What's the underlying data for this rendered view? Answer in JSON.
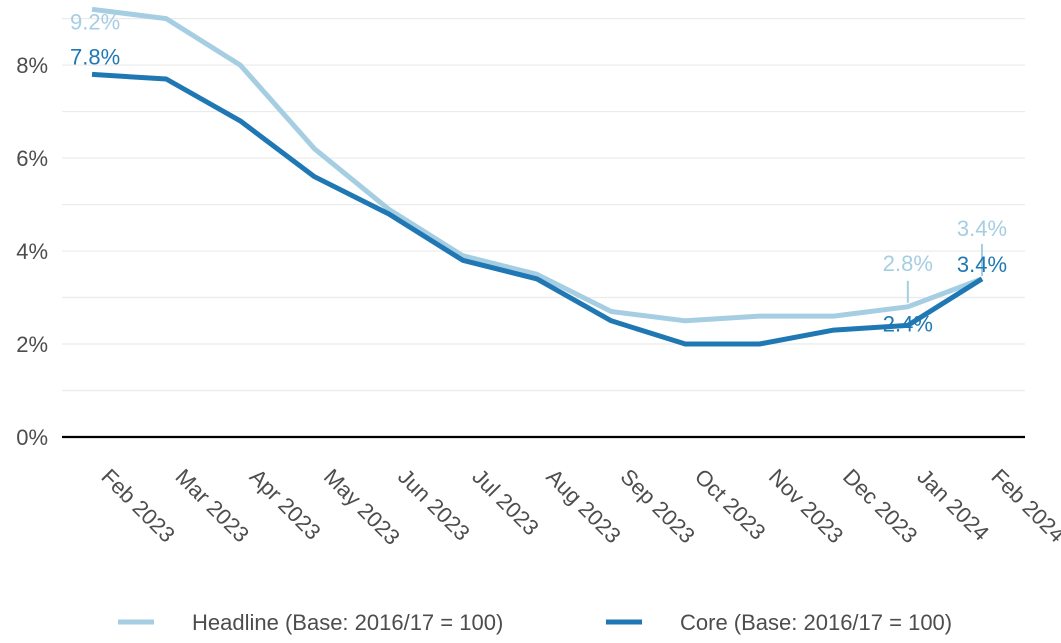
{
  "chart_data": {
    "type": "line",
    "title": "",
    "xlabel": "",
    "ylabel": "",
    "categories": [
      "Feb 2023",
      "Mar 2023",
      "Apr 2023",
      "May 2023",
      "Jun 2023",
      "Jul 2023",
      "Aug 2023",
      "Sep 2023",
      "Oct 2023",
      "Nov 2023",
      "Dec 2023",
      "Jan 2024",
      "Feb 2024"
    ],
    "ylim": [
      0,
      9.4
    ],
    "yticks": [
      0,
      2,
      4,
      6,
      8
    ],
    "ytick_labels": [
      "0%",
      "2%",
      "4%",
      "6%",
      "8%"
    ],
    "grid": true,
    "legend_position": "bottom",
    "series": [
      {
        "name": "Headline (Base: 2016/17 = 100)",
        "color": "#a6cee3",
        "values": [
          9.2,
          9.0,
          8.0,
          6.2,
          4.9,
          3.9,
          3.5,
          2.7,
          2.5,
          2.6,
          2.6,
          2.8,
          3.4
        ]
      },
      {
        "name": "Core (Base: 2016/17 = 100)",
        "color": "#1f78b4",
        "values": [
          7.8,
          7.7,
          6.8,
          5.6,
          4.8,
          3.8,
          3.4,
          2.5,
          2.0,
          2.0,
          2.3,
          2.4,
          3.4
        ]
      }
    ],
    "annotations": [
      {
        "series": 0,
        "index": 0,
        "text": "9.2%"
      },
      {
        "series": 1,
        "index": 0,
        "text": "7.8%"
      },
      {
        "series": 0,
        "index": 11,
        "text": "2.8%"
      },
      {
        "series": 1,
        "index": 11,
        "text": "2.4%"
      },
      {
        "series": 0,
        "index": 12,
        "text": "3.4%"
      },
      {
        "series": 1,
        "index": 12,
        "text": "3.4%"
      }
    ]
  }
}
